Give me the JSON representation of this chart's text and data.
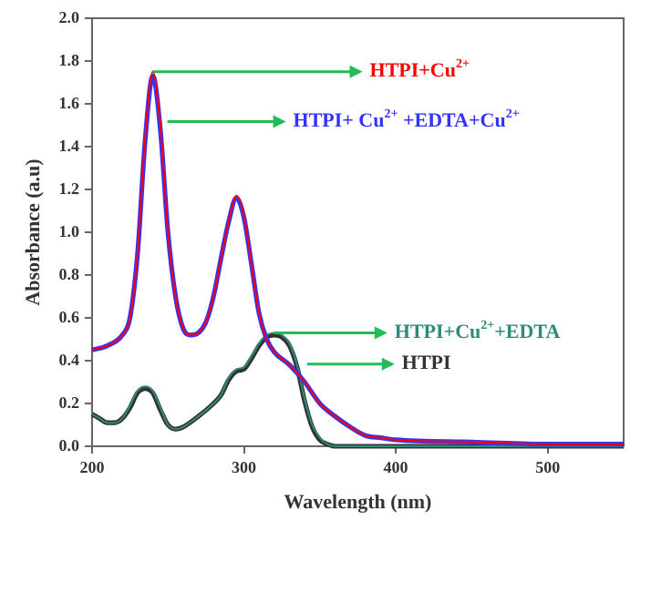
{
  "chart_data": {
    "type": "line",
    "xlabel": "Wavelength (nm)",
    "ylabel": "Absorbance (a.u)",
    "xlim": [
      200,
      550
    ],
    "xticks": [
      200,
      300,
      400,
      500
    ],
    "ylim": [
      0,
      2.0
    ],
    "yticks": [
      {
        "value": 0,
        "label": "0.0"
      },
      0.2,
      0.4,
      0.6,
      0.8,
      {
        "value": 1,
        "label": "1.0"
      },
      1.2,
      1.4,
      1.6,
      1.8,
      {
        "value": 2,
        "label": "2.0"
      }
    ],
    "grid": false,
    "legend": false,
    "marker": "none",
    "line_style": "solid",
    "series": [
      {
        "name": "HTPI+Cu$^{2+}$",
        "color": "#ff0000",
        "x": [
          200,
          210,
          220,
          225,
          230,
          235,
          240,
          245,
          250,
          255,
          260,
          265,
          270,
          275,
          280,
          285,
          290,
          295,
          300,
          305,
          310,
          315,
          320,
          330,
          340,
          350,
          360,
          370,
          380,
          390,
          400,
          450,
          500,
          550
        ],
        "values": [
          0.45,
          0.47,
          0.52,
          0.6,
          0.9,
          1.45,
          1.75,
          1.5,
          1.0,
          0.7,
          0.55,
          0.52,
          0.53,
          0.58,
          0.7,
          0.88,
          1.05,
          1.17,
          1.08,
          0.85,
          0.62,
          0.5,
          0.44,
          0.38,
          0.3,
          0.2,
          0.14,
          0.09,
          0.05,
          0.04,
          0.03,
          0.02,
          0.01,
          0.01
        ]
      },
      {
        "name": "HTPI+ Cu$^{2+}$ +EDTA+Cu$^{2+}$",
        "color": "#3333ff",
        "x": [
          200,
          210,
          220,
          225,
          230,
          235,
          240,
          245,
          250,
          255,
          260,
          265,
          270,
          275,
          280,
          285,
          290,
          295,
          300,
          305,
          310,
          315,
          320,
          330,
          340,
          350,
          360,
          370,
          380,
          390,
          400,
          450,
          500,
          550
        ],
        "values": [
          0.45,
          0.47,
          0.52,
          0.6,
          0.9,
          1.43,
          1.73,
          1.48,
          1.0,
          0.7,
          0.55,
          0.52,
          0.53,
          0.58,
          0.7,
          0.88,
          1.05,
          1.16,
          1.07,
          0.85,
          0.62,
          0.5,
          0.44,
          0.38,
          0.3,
          0.2,
          0.14,
          0.09,
          0.05,
          0.04,
          0.03,
          0.02,
          0.01,
          0.01
        ]
      },
      {
        "name": "HTPI+Cu$^{2+}$+EDTA",
        "color": "#2e8b7a",
        "x": [
          200,
          205,
          210,
          215,
          220,
          225,
          230,
          235,
          240,
          245,
          250,
          255,
          260,
          270,
          280,
          285,
          290,
          295,
          300,
          305,
          310,
          315,
          320,
          325,
          330,
          335,
          340,
          345,
          350,
          355,
          360,
          380,
          550
        ],
        "values": [
          0.15,
          0.13,
          0.11,
          0.11,
          0.13,
          0.19,
          0.26,
          0.28,
          0.26,
          0.18,
          0.1,
          0.08,
          0.09,
          0.14,
          0.2,
          0.24,
          0.32,
          0.36,
          0.37,
          0.42,
          0.48,
          0.52,
          0.53,
          0.52,
          0.48,
          0.38,
          0.22,
          0.1,
          0.04,
          0.01,
          0,
          0,
          0
        ]
      },
      {
        "name": "HTPI",
        "color": "#333333",
        "x": [
          200,
          205,
          210,
          215,
          220,
          225,
          230,
          235,
          240,
          245,
          250,
          255,
          260,
          270,
          280,
          285,
          290,
          295,
          300,
          305,
          310,
          315,
          320,
          325,
          330,
          335,
          340,
          345,
          350,
          355,
          360,
          380,
          550
        ],
        "values": [
          0.15,
          0.13,
          0.11,
          0.11,
          0.13,
          0.18,
          0.25,
          0.27,
          0.25,
          0.17,
          0.1,
          0.08,
          0.09,
          0.14,
          0.2,
          0.24,
          0.31,
          0.35,
          0.36,
          0.41,
          0.47,
          0.51,
          0.52,
          0.51,
          0.47,
          0.37,
          0.21,
          0.09,
          0.03,
          0.01,
          0,
          0,
          0
        ]
      }
    ]
  }
}
